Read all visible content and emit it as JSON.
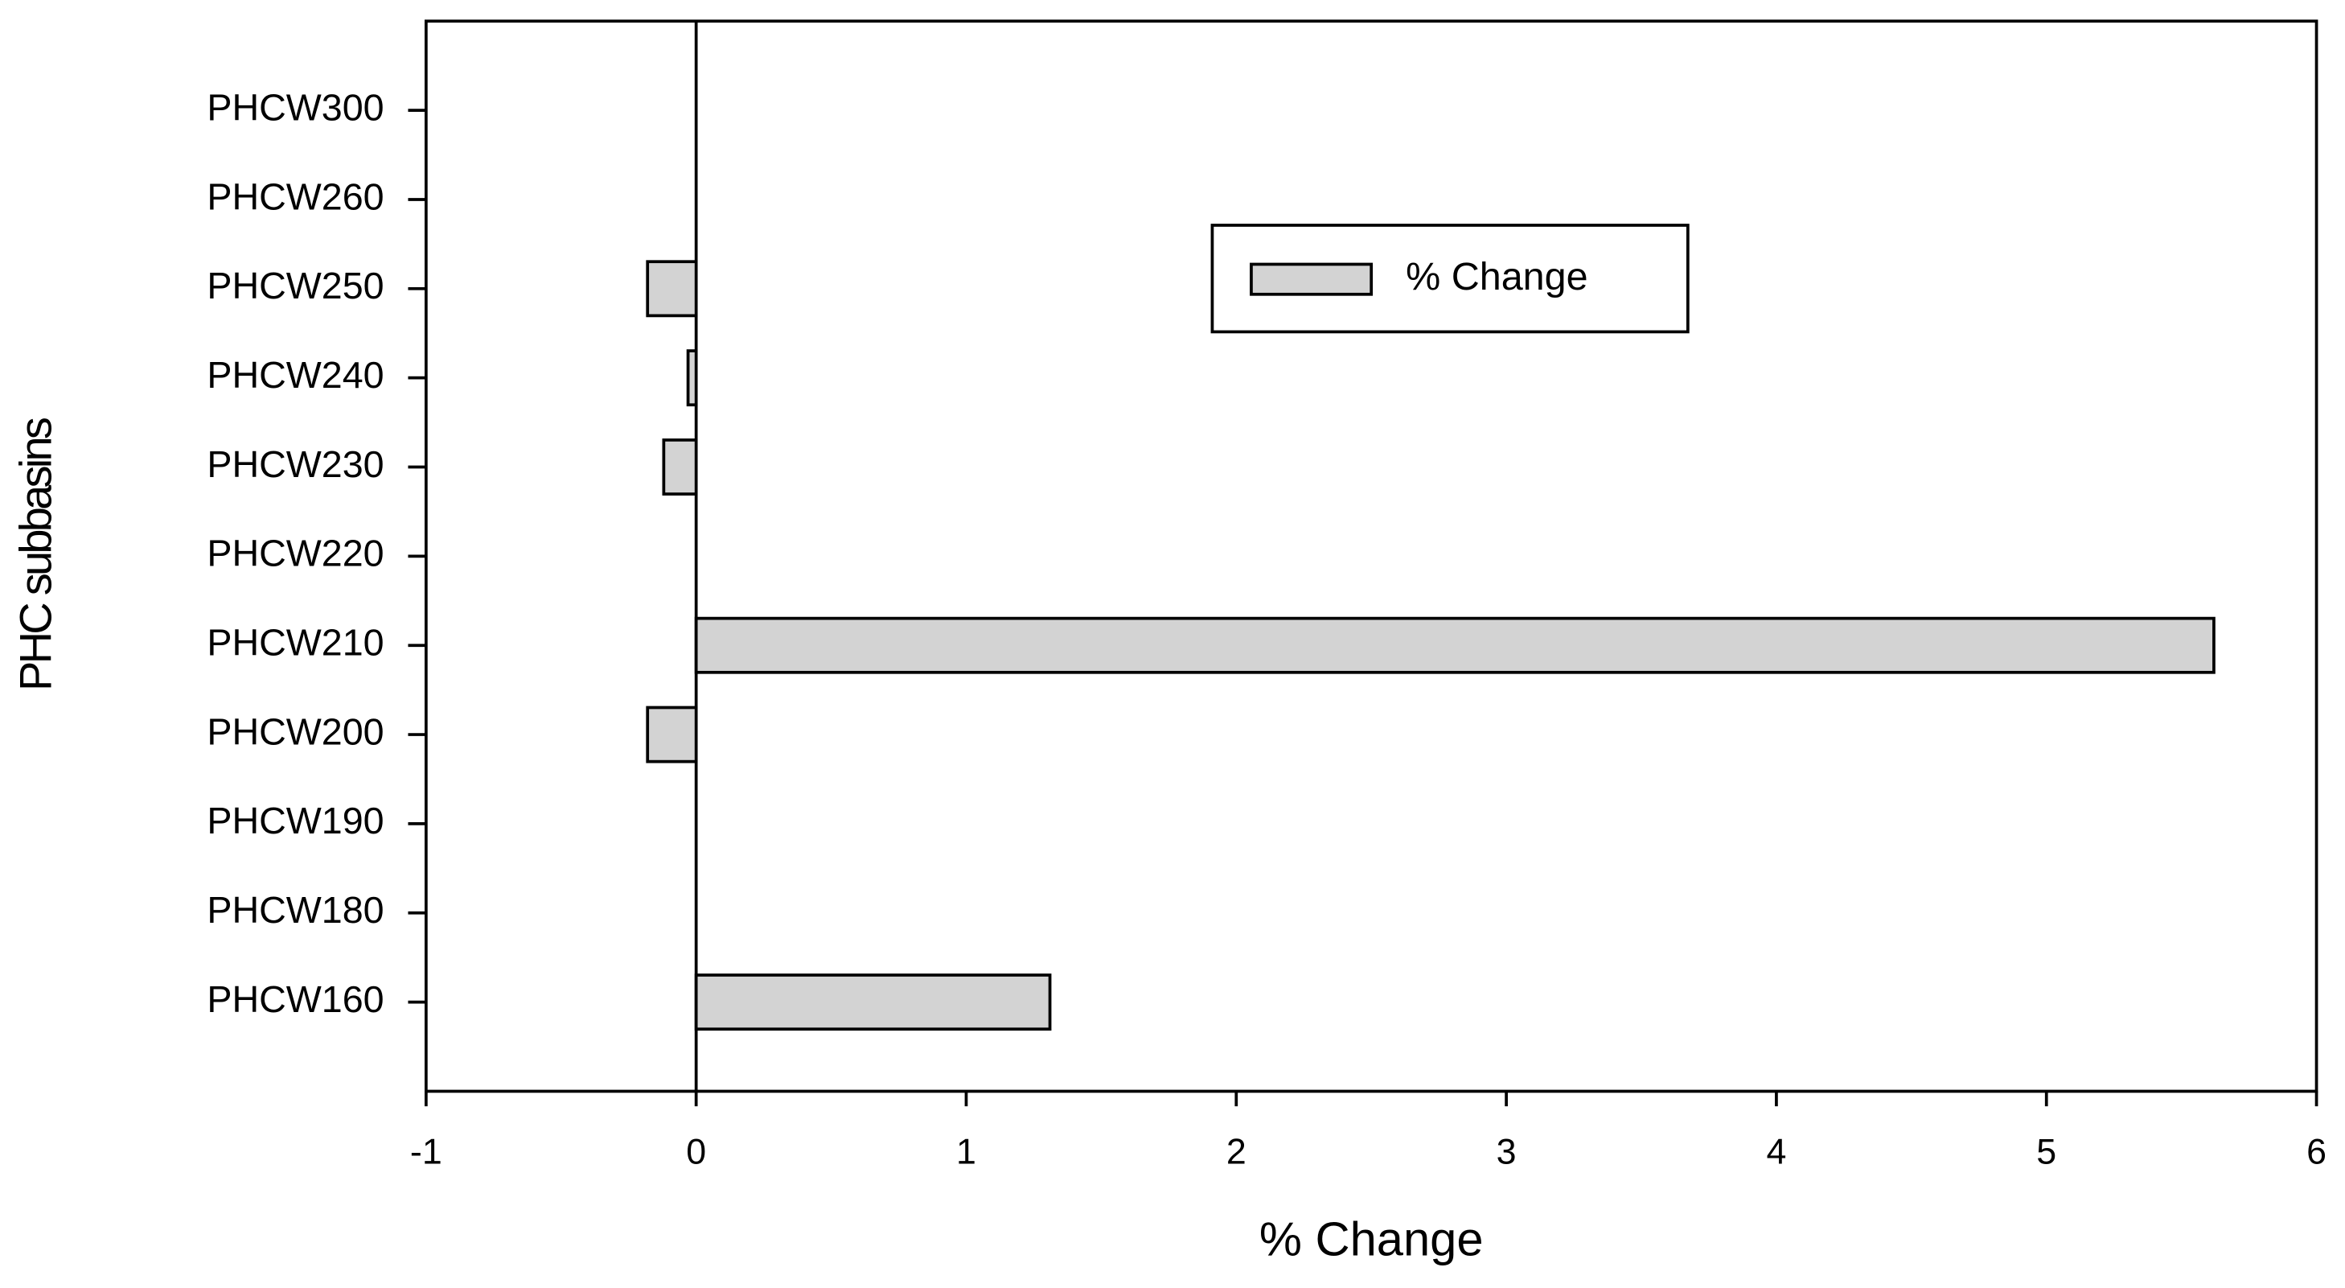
{
  "chart_data": {
    "type": "bar",
    "orientation": "horizontal",
    "xlabel": "% Change",
    "ylabel": "PHC subbasins",
    "categories": [
      "PHCW300",
      "PHCW260",
      "PHCW250",
      "PHCW240",
      "PHCW230",
      "PHCW220",
      "PHCW210",
      "PHCW200",
      "PHCW190",
      "PHCW180",
      "PHCW160"
    ],
    "series": [
      {
        "name": "% Change",
        "color": "#d3d3d3",
        "values": [
          0,
          0,
          -0.18,
          -0.03,
          -0.12,
          0,
          5.62,
          -0.18,
          0,
          0,
          1.31
        ]
      }
    ],
    "xlim": [
      -1,
      6
    ],
    "xticks": [
      -1,
      0,
      1,
      2,
      3,
      4,
      5,
      6
    ],
    "grid": false,
    "legend": "upper center"
  }
}
